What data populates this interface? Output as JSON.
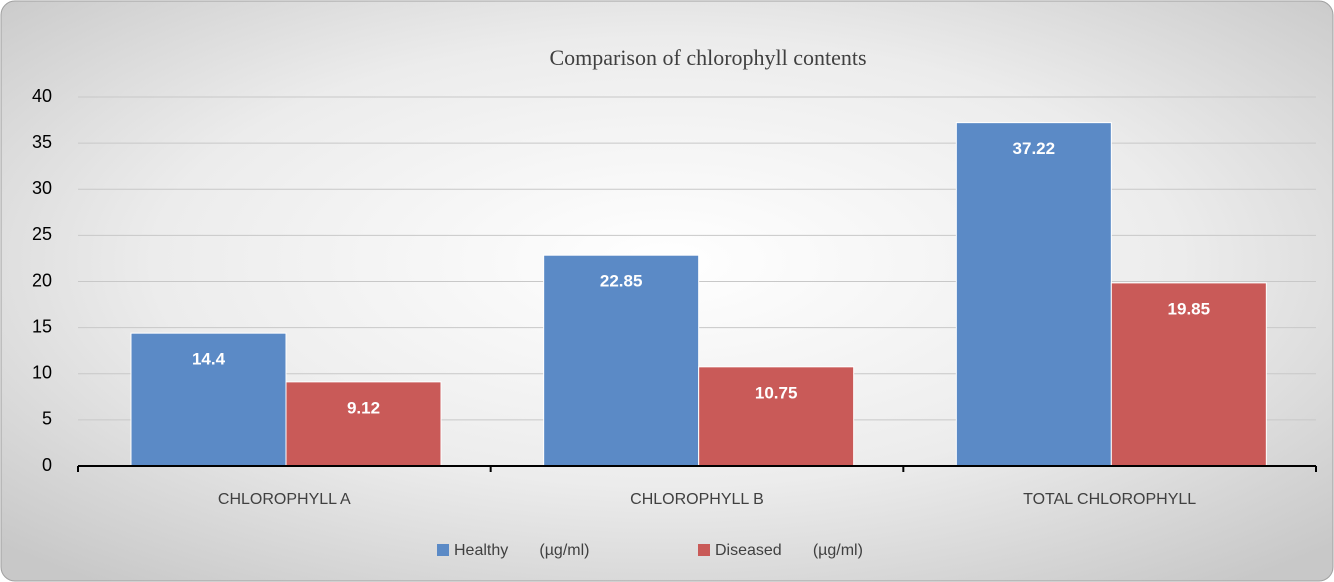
{
  "chart_data": {
    "type": "bar",
    "title": "Comparison of chlorophyll contents",
    "categories": [
      "CHLOROPHYLL A",
      "CHLOROPHYLL B",
      "TOTAL CHLOROPHYLL"
    ],
    "series": [
      {
        "name": "Healthy       (µg/ml)",
        "color": "#5b8ac6",
        "values": [
          14.4,
          22.85,
          37.22
        ]
      },
      {
        "name": "Diseased       (µg/ml)",
        "color": "#c95a58",
        "values": [
          9.12,
          10.75,
          19.85
        ]
      }
    ],
    "ylim": [
      0,
      40
    ],
    "yticks": [
      0,
      5,
      10,
      15,
      20,
      25,
      30,
      35,
      40
    ],
    "grid": true,
    "legend": "bottom"
  }
}
